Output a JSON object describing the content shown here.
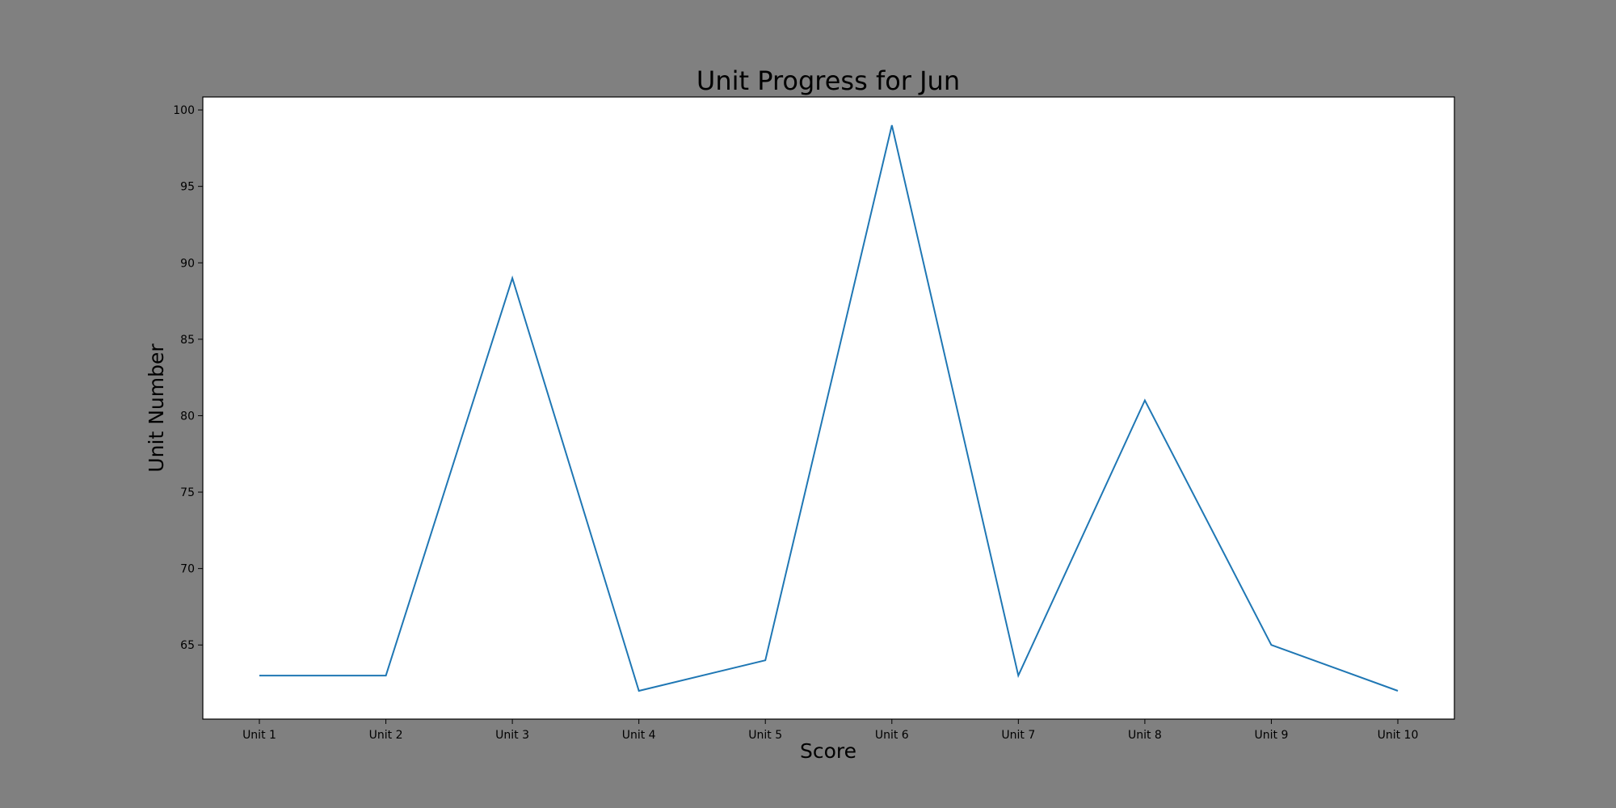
{
  "chart_data": {
    "type": "line",
    "title": "Unit Progress for Jun",
    "xlabel": "Score",
    "ylabel": "Unit Number",
    "categories": [
      "Unit 1",
      "Unit 2",
      "Unit 3",
      "Unit 4",
      "Unit 5",
      "Unit 6",
      "Unit 7",
      "Unit 8",
      "Unit 9",
      "Unit 10"
    ],
    "series": [
      {
        "values": [
          63,
          63,
          89,
          62,
          64,
          99,
          63,
          81,
          65,
          62
        ],
        "color": "#1f77b4"
      }
    ],
    "yticks": [
      65,
      70,
      75,
      80,
      85,
      90,
      95,
      100
    ],
    "ylim": [
      60.15,
      100.85
    ],
    "grid": false,
    "legend": "none"
  },
  "colors": {
    "figure_background": "#808080",
    "plot_background": "#ffffff",
    "axis": "#000000"
  }
}
